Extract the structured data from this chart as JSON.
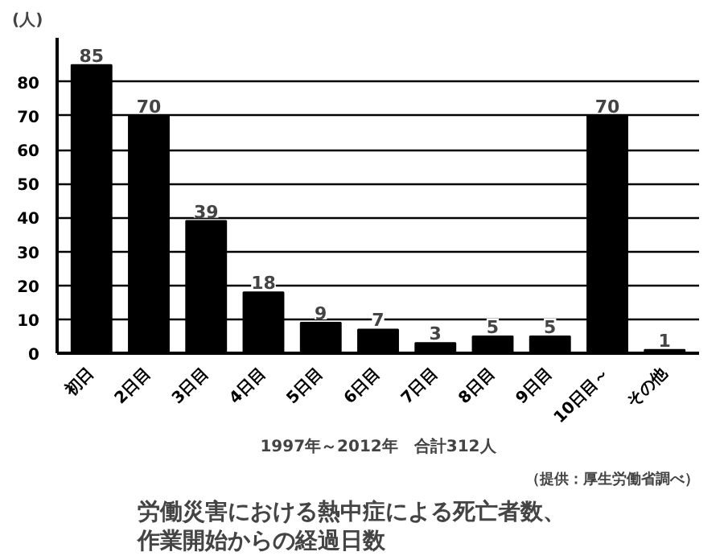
{
  "chart_data": {
    "type": "bar",
    "title": "労働災害における熱中症による死亡者数、",
    "subtitle": "作業開始からの経過日数",
    "ylabel": "(人)",
    "xlabel": "1997年～2012年　合計312人",
    "annotations": [
      "（提供：厚生労働省調べ）"
    ],
    "categories": [
      "初日",
      "2日目",
      "3日目",
      "4日目",
      "5日目",
      "6日目",
      "7日目",
      "8日目",
      "9日目",
      "10日目～",
      "その他"
    ],
    "values": [
      85,
      70,
      39,
      18,
      9,
      7,
      3,
      5,
      5,
      70,
      1
    ],
    "color": "#000000",
    "ylim": [
      0,
      93
    ],
    "yticks": [
      0,
      10,
      20,
      30,
      40,
      50,
      60,
      70,
      80
    ],
    "grid": "y",
    "data_labels": true
  }
}
